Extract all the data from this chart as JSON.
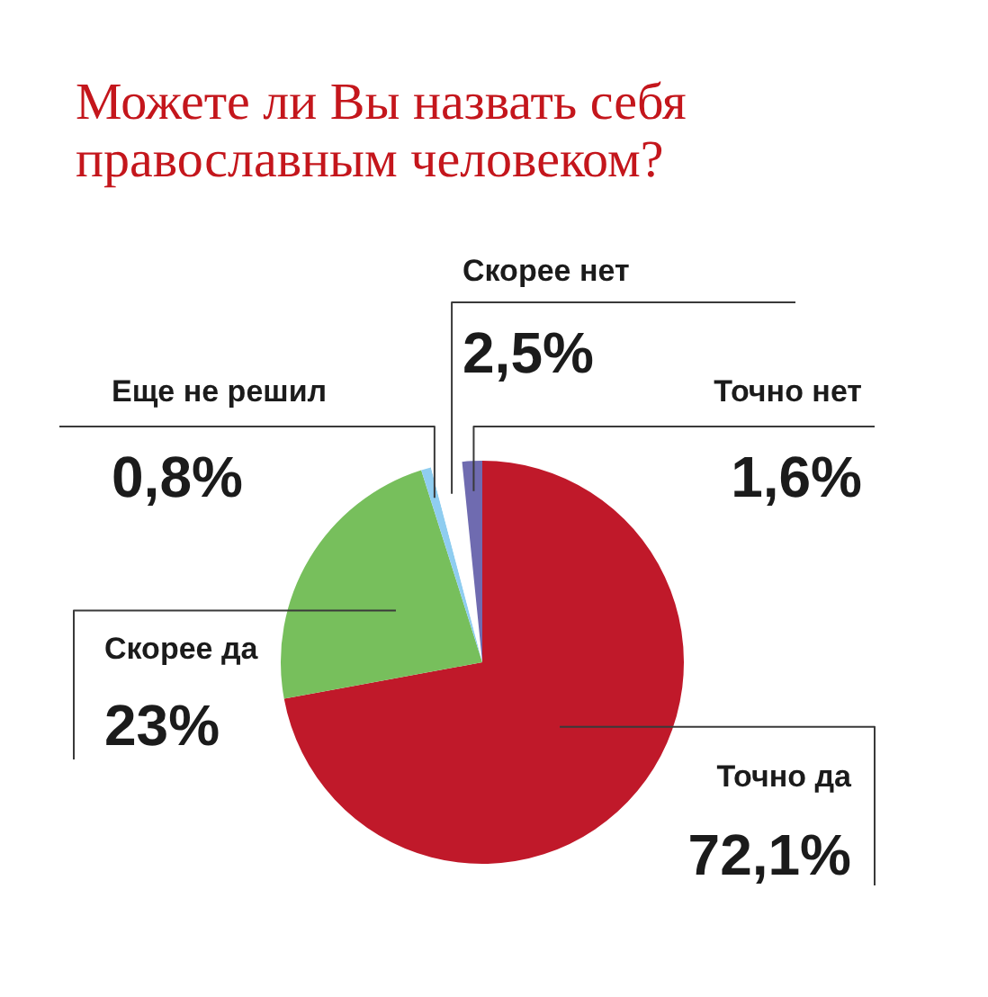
{
  "chart_data": {
    "type": "pie",
    "title": "Можете ли Вы назвать себя православным человеком?",
    "categories": [
      "Точно да",
      "Скорее да",
      "Еще не решил",
      "Скорее нет",
      "Точно нет"
    ],
    "values": [
      72.1,
      23,
      0.8,
      2.5,
      1.6
    ],
    "colors": [
      "#c0192a",
      "#77bf5c",
      "#8fcdf0",
      "#ffffff",
      "#6f6bb0"
    ],
    "value_labels": [
      "72,1%",
      "23%",
      "0,8%",
      "2,5%",
      "1,6%"
    ]
  }
}
